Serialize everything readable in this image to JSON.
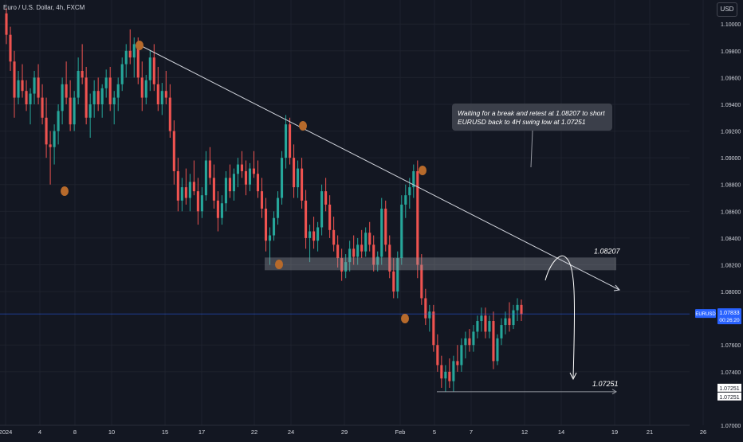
{
  "header": {
    "symbol_title": "Euro / U.S. Dollar, 4h, FXCM",
    "currency_button": "USD"
  },
  "colors": {
    "background": "#131722",
    "up": "#26a69a",
    "down": "#ef5350",
    "text": "#d1d4dc",
    "grid": "#1e222d",
    "marker": "#b76a2b",
    "zone": "#9598a1",
    "price_line": "#2962ff"
  },
  "chart_data": {
    "type": "candlestick",
    "ylim": [
      1.07,
      1.1018
    ],
    "y_ticks": [
      "1.10000",
      "1.09800",
      "1.09600",
      "1.09400",
      "1.09200",
      "1.09000",
      "1.08800",
      "1.08600",
      "1.08400",
      "1.08200",
      "1.08000",
      "1.07600",
      "1.07400",
      "1.07000"
    ],
    "x_ticks": [
      "2024",
      "4",
      "8",
      "10",
      "15",
      "17",
      "22",
      "24",
      "29",
      "Feb",
      "5",
      "7",
      "12",
      "14",
      "19",
      "21",
      "26"
    ],
    "current_price_label": "EURUSD",
    "current_price": "1.07833",
    "countdown": "00:26:20",
    "level_labels": [
      "1.08207",
      "1.07251"
    ],
    "right_labels": [
      "1.07251",
      "1.07251"
    ],
    "annotation": "Waiting for a break and retest at 1.08207 to short EURUSD back to 4H swing low at 1.07251",
    "candles_ohlc": [
      [
        1.1008,
        1.1012,
        1.0985,
        1.0992
      ],
      [
        1.0992,
        1.0998,
        1.0965,
        1.0972
      ],
      [
        1.0972,
        1.098,
        1.093,
        1.0945
      ],
      [
        1.0945,
        1.0965,
        1.094,
        1.0958
      ],
      [
        1.0958,
        1.097,
        1.0945,
        1.095
      ],
      [
        1.095,
        1.0958,
        1.0935,
        1.094
      ],
      [
        1.094,
        1.0952,
        1.0925,
        1.0948
      ],
      [
        1.0948,
        1.0965,
        1.094,
        1.096
      ],
      [
        1.096,
        1.097,
        1.094,
        1.0945
      ],
      [
        1.0945,
        1.0955,
        1.0925,
        1.093
      ],
      [
        1.093,
        1.0945,
        1.09,
        1.091
      ],
      [
        1.091,
        1.092,
        1.088,
        1.0908
      ],
      [
        1.0908,
        1.0925,
        1.0895,
        1.092
      ],
      [
        1.092,
        1.094,
        1.091,
        1.0935
      ],
      [
        1.0935,
        1.096,
        1.0925,
        1.0955
      ],
      [
        1.0955,
        1.0972,
        1.094,
        1.0945
      ],
      [
        1.0945,
        1.0958,
        1.092,
        1.0925
      ],
      [
        1.0925,
        1.095,
        1.092,
        1.0945
      ],
      [
        1.0945,
        1.0975,
        1.094,
        1.0965
      ],
      [
        1.0965,
        1.0985,
        1.0955,
        1.096
      ],
      [
        1.096,
        1.0968,
        1.0925,
        1.093
      ],
      [
        1.093,
        1.0948,
        1.0915,
        1.094
      ],
      [
        1.094,
        1.0958,
        1.093,
        1.095
      ],
      [
        1.095,
        1.096,
        1.0935,
        1.094
      ],
      [
        1.094,
        1.0955,
        1.093,
        1.0952
      ],
      [
        1.0952,
        1.0966,
        1.0945,
        1.096
      ],
      [
        1.096,
        1.0968,
        1.0935,
        1.094
      ],
      [
        1.094,
        1.095,
        1.0925,
        1.0945
      ],
      [
        1.0945,
        1.096,
        1.0935,
        1.0955
      ],
      [
        1.0955,
        1.0975,
        1.095,
        1.097
      ],
      [
        1.097,
        1.0985,
        1.096,
        1.098
      ],
      [
        1.098,
        1.0996,
        1.097,
        1.0975
      ],
      [
        1.0975,
        1.099,
        1.096,
        1.0985
      ],
      [
        1.0985,
        1.099,
        1.0955,
        1.096
      ],
      [
        1.096,
        1.0972,
        1.0935,
        1.0945
      ],
      [
        1.0945,
        1.0962,
        1.094,
        1.0958
      ],
      [
        1.0958,
        1.098,
        1.095,
        1.0975
      ],
      [
        1.0975,
        1.0985,
        1.095,
        1.0955
      ],
      [
        1.0955,
        1.0968,
        1.0935,
        1.094
      ],
      [
        1.094,
        1.0956,
        1.0932,
        1.095
      ],
      [
        1.095,
        1.0965,
        1.094,
        1.0945
      ],
      [
        1.0945,
        1.0955,
        1.0915,
        1.092
      ],
      [
        1.092,
        1.0928,
        1.088,
        1.089
      ],
      [
        1.089,
        1.09,
        1.086,
        1.0868
      ],
      [
        1.0868,
        1.0885,
        1.086,
        1.0878
      ],
      [
        1.0878,
        1.0892,
        1.0865,
        1.087
      ],
      [
        1.087,
        1.0888,
        1.086,
        1.0882
      ],
      [
        1.0882,
        1.0898,
        1.0872,
        1.0875
      ],
      [
        1.0875,
        1.0885,
        1.085,
        1.086
      ],
      [
        1.086,
        1.0878,
        1.0855,
        1.0872
      ],
      [
        1.0872,
        1.0905,
        1.0868,
        1.0898
      ],
      [
        1.0898,
        1.0908,
        1.088,
        1.0885
      ],
      [
        1.0885,
        1.0895,
        1.0862,
        1.0868
      ],
      [
        1.0868,
        1.0875,
        1.0845,
        1.0855
      ],
      [
        1.0855,
        1.0872,
        1.085,
        1.0866
      ],
      [
        1.0866,
        1.089,
        1.086,
        1.0885
      ],
      [
        1.0885,
        1.0895,
        1.087,
        1.0875
      ],
      [
        1.0875,
        1.0892,
        1.0868,
        1.0888
      ],
      [
        1.0888,
        1.09,
        1.0878,
        1.0895
      ],
      [
        1.0895,
        1.0905,
        1.0885,
        1.089
      ],
      [
        1.089,
        1.0898,
        1.0872,
        1.088
      ],
      [
        1.088,
        1.0896,
        1.0875,
        1.0892
      ],
      [
        1.0892,
        1.0905,
        1.0885,
        1.0888
      ],
      [
        1.0888,
        1.0898,
        1.087,
        1.0875
      ],
      [
        1.0875,
        1.0885,
        1.0855,
        1.0862
      ],
      [
        1.0862,
        1.087,
        1.083,
        1.0838
      ],
      [
        1.0838,
        1.0848,
        1.082,
        1.0842
      ],
      [
        1.0842,
        1.086,
        1.0838,
        1.0855
      ],
      [
        1.0855,
        1.0875,
        1.085,
        1.087
      ],
      [
        1.087,
        1.0905,
        1.0865,
        1.09
      ],
      [
        1.09,
        1.0932,
        1.0892,
        1.0925
      ],
      [
        1.0925,
        1.093,
        1.0895,
        1.09
      ],
      [
        1.09,
        1.091,
        1.087,
        1.0878
      ],
      [
        1.0878,
        1.0898,
        1.087,
        1.0892
      ],
      [
        1.0892,
        1.09,
        1.0862,
        1.0868
      ],
      [
        1.0868,
        1.0876,
        1.0832,
        1.084
      ],
      [
        1.084,
        1.085,
        1.0822,
        1.0845
      ],
      [
        1.0845,
        1.0856,
        1.0832,
        1.0838
      ],
      [
        1.0838,
        1.0852,
        1.083,
        1.0848
      ],
      [
        1.0848,
        1.088,
        1.0842,
        1.0875
      ],
      [
        1.0875,
        1.0885,
        1.086,
        1.0865
      ],
      [
        1.0865,
        1.0872,
        1.084,
        1.0846
      ],
      [
        1.0846,
        1.0856,
        1.083,
        1.0835
      ],
      [
        1.0835,
        1.0842,
        1.0818,
        1.0825
      ],
      [
        1.0825,
        1.0832,
        1.0808,
        1.0815
      ],
      [
        1.0815,
        1.0828,
        1.081,
        1.0822
      ],
      [
        1.0822,
        1.0838,
        1.0815,
        1.0832
      ],
      [
        1.0832,
        1.0842,
        1.082,
        1.0826
      ],
      [
        1.0826,
        1.084,
        1.082,
        1.0835
      ],
      [
        1.0835,
        1.0846,
        1.0825,
        1.083
      ],
      [
        1.083,
        1.0848,
        1.0826,
        1.0844
      ],
      [
        1.0844,
        1.0852,
        1.083,
        1.0835
      ],
      [
        1.0835,
        1.0842,
        1.0815,
        1.082
      ],
      [
        1.082,
        1.083,
        1.0815,
        1.0826
      ],
      [
        1.0826,
        1.087,
        1.082,
        1.0862
      ],
      [
        1.0862,
        1.0868,
        1.083,
        1.0835
      ],
      [
        1.0835,
        1.0842,
        1.081,
        1.0815
      ],
      [
        1.0815,
        1.0825,
        1.0795,
        1.08
      ],
      [
        1.08,
        1.083,
        1.0795,
        1.0825
      ],
      [
        1.0825,
        1.0872,
        1.082,
        1.0865
      ],
      [
        1.0865,
        1.088,
        1.0855,
        1.0872
      ],
      [
        1.0872,
        1.0885,
        1.0862,
        1.0878
      ],
      [
        1.0878,
        1.0895,
        1.087,
        1.089
      ],
      [
        1.089,
        1.0898,
        1.081,
        1.082
      ],
      [
        1.082,
        1.0828,
        1.079,
        1.0795
      ],
      [
        1.0795,
        1.0802,
        1.0775,
        1.078
      ],
      [
        1.078,
        1.079,
        1.077,
        1.0785
      ],
      [
        1.0785,
        1.079,
        1.0755,
        1.076
      ],
      [
        1.076,
        1.0768,
        1.074,
        1.0745
      ],
      [
        1.0745,
        1.0752,
        1.0728,
        1.0735
      ],
      [
        1.0735,
        1.0745,
        1.0725,
        1.074
      ],
      [
        1.074,
        1.075,
        1.0728,
        1.0733
      ],
      [
        1.0733,
        1.0752,
        1.0725,
        1.0748
      ],
      [
        1.0748,
        1.076,
        1.074,
        1.0745
      ],
      [
        1.0745,
        1.0765,
        1.074,
        1.076
      ],
      [
        1.076,
        1.077,
        1.075,
        1.0765
      ],
      [
        1.0765,
        1.0772,
        1.0755,
        1.076
      ],
      [
        1.076,
        1.0775,
        1.0755,
        1.077
      ],
      [
        1.077,
        1.0782,
        1.0765,
        1.0778
      ],
      [
        1.0778,
        1.0788,
        1.077,
        1.0782
      ],
      [
        1.0782,
        1.0788,
        1.0765,
        1.077
      ],
      [
        1.077,
        1.0782,
        1.0765,
        1.0778
      ],
      [
        1.0778,
        1.0785,
        1.0742,
        1.0748
      ],
      [
        1.0748,
        1.0768,
        1.0745,
        1.0765
      ],
      [
        1.0765,
        1.078,
        1.076,
        1.0775
      ],
      [
        1.0775,
        1.0785,
        1.0768,
        1.078
      ],
      [
        1.078,
        1.0792,
        1.077,
        1.0775
      ],
      [
        1.0775,
        1.079,
        1.0772,
        1.0786
      ],
      [
        1.0786,
        1.0795,
        1.0778,
        1.079
      ],
      [
        1.079,
        1.0794,
        1.0778,
        1.0783
      ]
    ]
  }
}
